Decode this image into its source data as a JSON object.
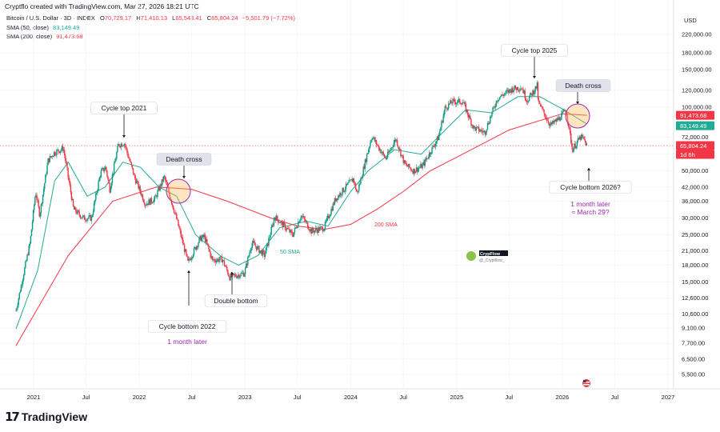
{
  "header": {
    "created_line": "Cryptflo created with TradingView.com, Mar 27, 2026 18:21 UTC",
    "symbol": "Bitcoin / U.S. Dollar · 3D · INDEX",
    "ohlc": {
      "o_label": "O",
      "o": "70,729.17",
      "h_label": "H",
      "h": "71,410.13",
      "l_label": "L",
      "l": "65,543.41",
      "c_label": "C",
      "c": "65,804.24",
      "change": "−5,501.79 (−7.72%)"
    },
    "sma50_label": "SMA (50, close)",
    "sma50_value": "83,149.49",
    "sma200_label": "SMA (200, close)",
    "sma200_value": "91,473.68"
  },
  "footer": {
    "brand": "TradingView"
  },
  "chart_data": {
    "type": "candlestick",
    "scale": "log",
    "currency": "USD",
    "y_ticks": [
      "220,000.00",
      "180,000.00",
      "150,000.00",
      "120,000.00",
      "100,000.00",
      "72,000.00",
      "60,000.00",
      "50,000.00",
      "42,000.00",
      "36,000.00",
      "30,000.00",
      "25,000.00",
      "21,000.00",
      "18,000.00",
      "15,000.00",
      "12,600.00",
      "10,600.00",
      "9,100.00",
      "7,700.00",
      "6,500.00",
      "5,500.00"
    ],
    "x_ticks": [
      "2021",
      "Jul",
      "2022",
      "Jul",
      "2023",
      "Jul",
      "2024",
      "Jul",
      "2025",
      "Jul",
      "2026",
      "Jul",
      "2027"
    ],
    "price_tags": [
      {
        "value": "91,473.68",
        "color": "#f23645"
      },
      {
        "value": "83,149.49",
        "color": "#22ab94"
      },
      {
        "value": "65,804.24",
        "color": "#f23645"
      },
      {
        "value": "1d 6h",
        "color": "#f23645"
      }
    ],
    "price_path": [
      [
        "2020-11-01",
        11000
      ],
      [
        "2020-12-20",
        23000
      ],
      [
        "2021-01-08",
        40000
      ],
      [
        "2021-01-22",
        31000
      ],
      [
        "2021-02-20",
        56000
      ],
      [
        "2021-03-13",
        61000
      ],
      [
        "2021-04-14",
        64000
      ],
      [
        "2021-05-19",
        33000
      ],
      [
        "2021-06-22",
        30000
      ],
      [
        "2021-07-20",
        30000
      ],
      [
        "2021-08-20",
        49000
      ],
      [
        "2021-09-07",
        52000
      ],
      [
        "2021-09-21",
        41000
      ],
      [
        "2021-10-20",
        66000
      ],
      [
        "2021-11-10",
        68000
      ],
      [
        "2021-12-15",
        47000
      ],
      [
        "2022-01-22",
        35000
      ],
      [
        "2022-02-24",
        37000
      ],
      [
        "2022-03-28",
        47000
      ],
      [
        "2022-05-09",
        30000
      ],
      [
        "2022-06-18",
        18500
      ],
      [
        "2022-07-30",
        24000
      ],
      [
        "2022-08-14",
        24500
      ],
      [
        "2022-09-10",
        19000
      ],
      [
        "2022-10-15",
        19200
      ],
      [
        "2022-11-09",
        15800
      ],
      [
        "2022-12-30",
        16500
      ],
      [
        "2023-01-25",
        23000
      ],
      [
        "2023-03-10",
        20000
      ],
      [
        "2023-04-14",
        30500
      ],
      [
        "2023-06-15",
        25000
      ],
      [
        "2023-07-14",
        31000
      ],
      [
        "2023-08-18",
        26000
      ],
      [
        "2023-10-01",
        27000
      ],
      [
        "2023-11-10",
        37000
      ],
      [
        "2024-01-10",
        46000
      ],
      [
        "2024-01-23",
        39000
      ],
      [
        "2024-03-14",
        73000
      ],
      [
        "2024-05-01",
        57000
      ],
      [
        "2024-06-05",
        71000
      ],
      [
        "2024-07-05",
        54000
      ],
      [
        "2024-08-05",
        50000
      ],
      [
        "2024-09-06",
        53000
      ],
      [
        "2024-10-30",
        72000
      ],
      [
        "2024-11-22",
        99000
      ],
      [
        "2024-12-17",
        106000
      ],
      [
        "2025-01-22",
        106000
      ],
      [
        "2025-02-28",
        80000
      ],
      [
        "2025-04-08",
        76000
      ],
      [
        "2025-05-22",
        110000
      ],
      [
        "2025-07-14",
        122000
      ],
      [
        "2025-08-14",
        124000
      ],
      [
        "2025-09-01",
        107000
      ],
      [
        "2025-10-06",
        126000
      ],
      [
        "2025-10-10",
        105000
      ],
      [
        "2025-11-21",
        82000
      ],
      [
        "2025-12-20",
        88000
      ],
      [
        "2026-01-14",
        97000
      ],
      [
        "2026-02-05",
        63000
      ],
      [
        "2026-02-20",
        68000
      ],
      [
        "2026-03-05",
        72000
      ],
      [
        "2026-03-15",
        71000
      ],
      [
        "2026-03-27",
        65800
      ]
    ],
    "series": [
      {
        "name": "50 SMA",
        "color": "#22ab94",
        "points": [
          [
            "2020-11-01",
            9000
          ],
          [
            "2021-01-15",
            17000
          ],
          [
            "2021-03-15",
            45000
          ],
          [
            "2021-05-01",
            55000
          ],
          [
            "2021-07-05",
            38000
          ],
          [
            "2021-09-05",
            42000
          ],
          [
            "2021-11-05",
            55000
          ],
          [
            "2022-01-05",
            52000
          ],
          [
            "2022-03-10",
            42000
          ],
          [
            "2022-05-10",
            38000
          ],
          [
            "2022-07-15",
            25000
          ],
          [
            "2022-10-10",
            19800
          ],
          [
            "2022-12-10",
            18000
          ],
          [
            "2023-02-15",
            20000
          ],
          [
            "2023-05-01",
            27000
          ],
          [
            "2023-08-01",
            29000
          ],
          [
            "2023-10-15",
            27500
          ],
          [
            "2024-01-01",
            40000
          ],
          [
            "2024-03-01",
            50000
          ],
          [
            "2024-06-01",
            63000
          ],
          [
            "2024-09-01",
            60000
          ],
          [
            "2024-12-01",
            80000
          ],
          [
            "2025-02-01",
            97000
          ],
          [
            "2025-05-01",
            94000
          ],
          [
            "2025-08-01",
            112000
          ],
          [
            "2025-10-15",
            112000
          ],
          [
            "2026-01-01",
            98000
          ],
          [
            "2026-03-27",
            83149
          ]
        ]
      },
      {
        "name": "200 SMA",
        "color": "#f23645",
        "points": [
          [
            "2020-11-01",
            7500
          ],
          [
            "2021-05-01",
            20000
          ],
          [
            "2021-10-01",
            36000
          ],
          [
            "2022-03-01",
            42000
          ],
          [
            "2022-07-01",
            41000
          ],
          [
            "2022-11-01",
            36000
          ],
          [
            "2023-04-01",
            30000
          ],
          [
            "2023-07-01",
            27500
          ],
          [
            "2023-10-01",
            26500
          ],
          [
            "2024-01-01",
            28000
          ],
          [
            "2024-04-01",
            33000
          ],
          [
            "2024-07-01",
            40000
          ],
          [
            "2024-10-01",
            50000
          ],
          [
            "2025-01-01",
            58000
          ],
          [
            "2025-07-01",
            78000
          ],
          [
            "2026-01-01",
            93000
          ],
          [
            "2026-03-27",
            91474
          ]
        ]
      }
    ],
    "annotations": [
      {
        "text": "Cycle top 2021",
        "type": "label"
      },
      {
        "text": "Death cross",
        "type": "label"
      },
      {
        "text": "Cycle bottom 2022",
        "type": "label"
      },
      {
        "text": "1 month later",
        "type": "note"
      },
      {
        "text": "Double bottom",
        "type": "label"
      },
      {
        "text": "Cycle top 2025",
        "type": "label"
      },
      {
        "text": "Death cross",
        "type": "label"
      },
      {
        "text": "Cycle bottom 2026?",
        "type": "label"
      },
      {
        "text": "1 month later",
        "type": "note"
      },
      {
        "text": "≈ March 29?",
        "type": "note"
      },
      {
        "text": "50 SMA",
        "type": "line-label"
      },
      {
        "text": "200 SMA",
        "type": "line-label"
      }
    ],
    "watermark": {
      "name": "CrypFlow",
      "handle": "@_Cryptflow_"
    }
  }
}
